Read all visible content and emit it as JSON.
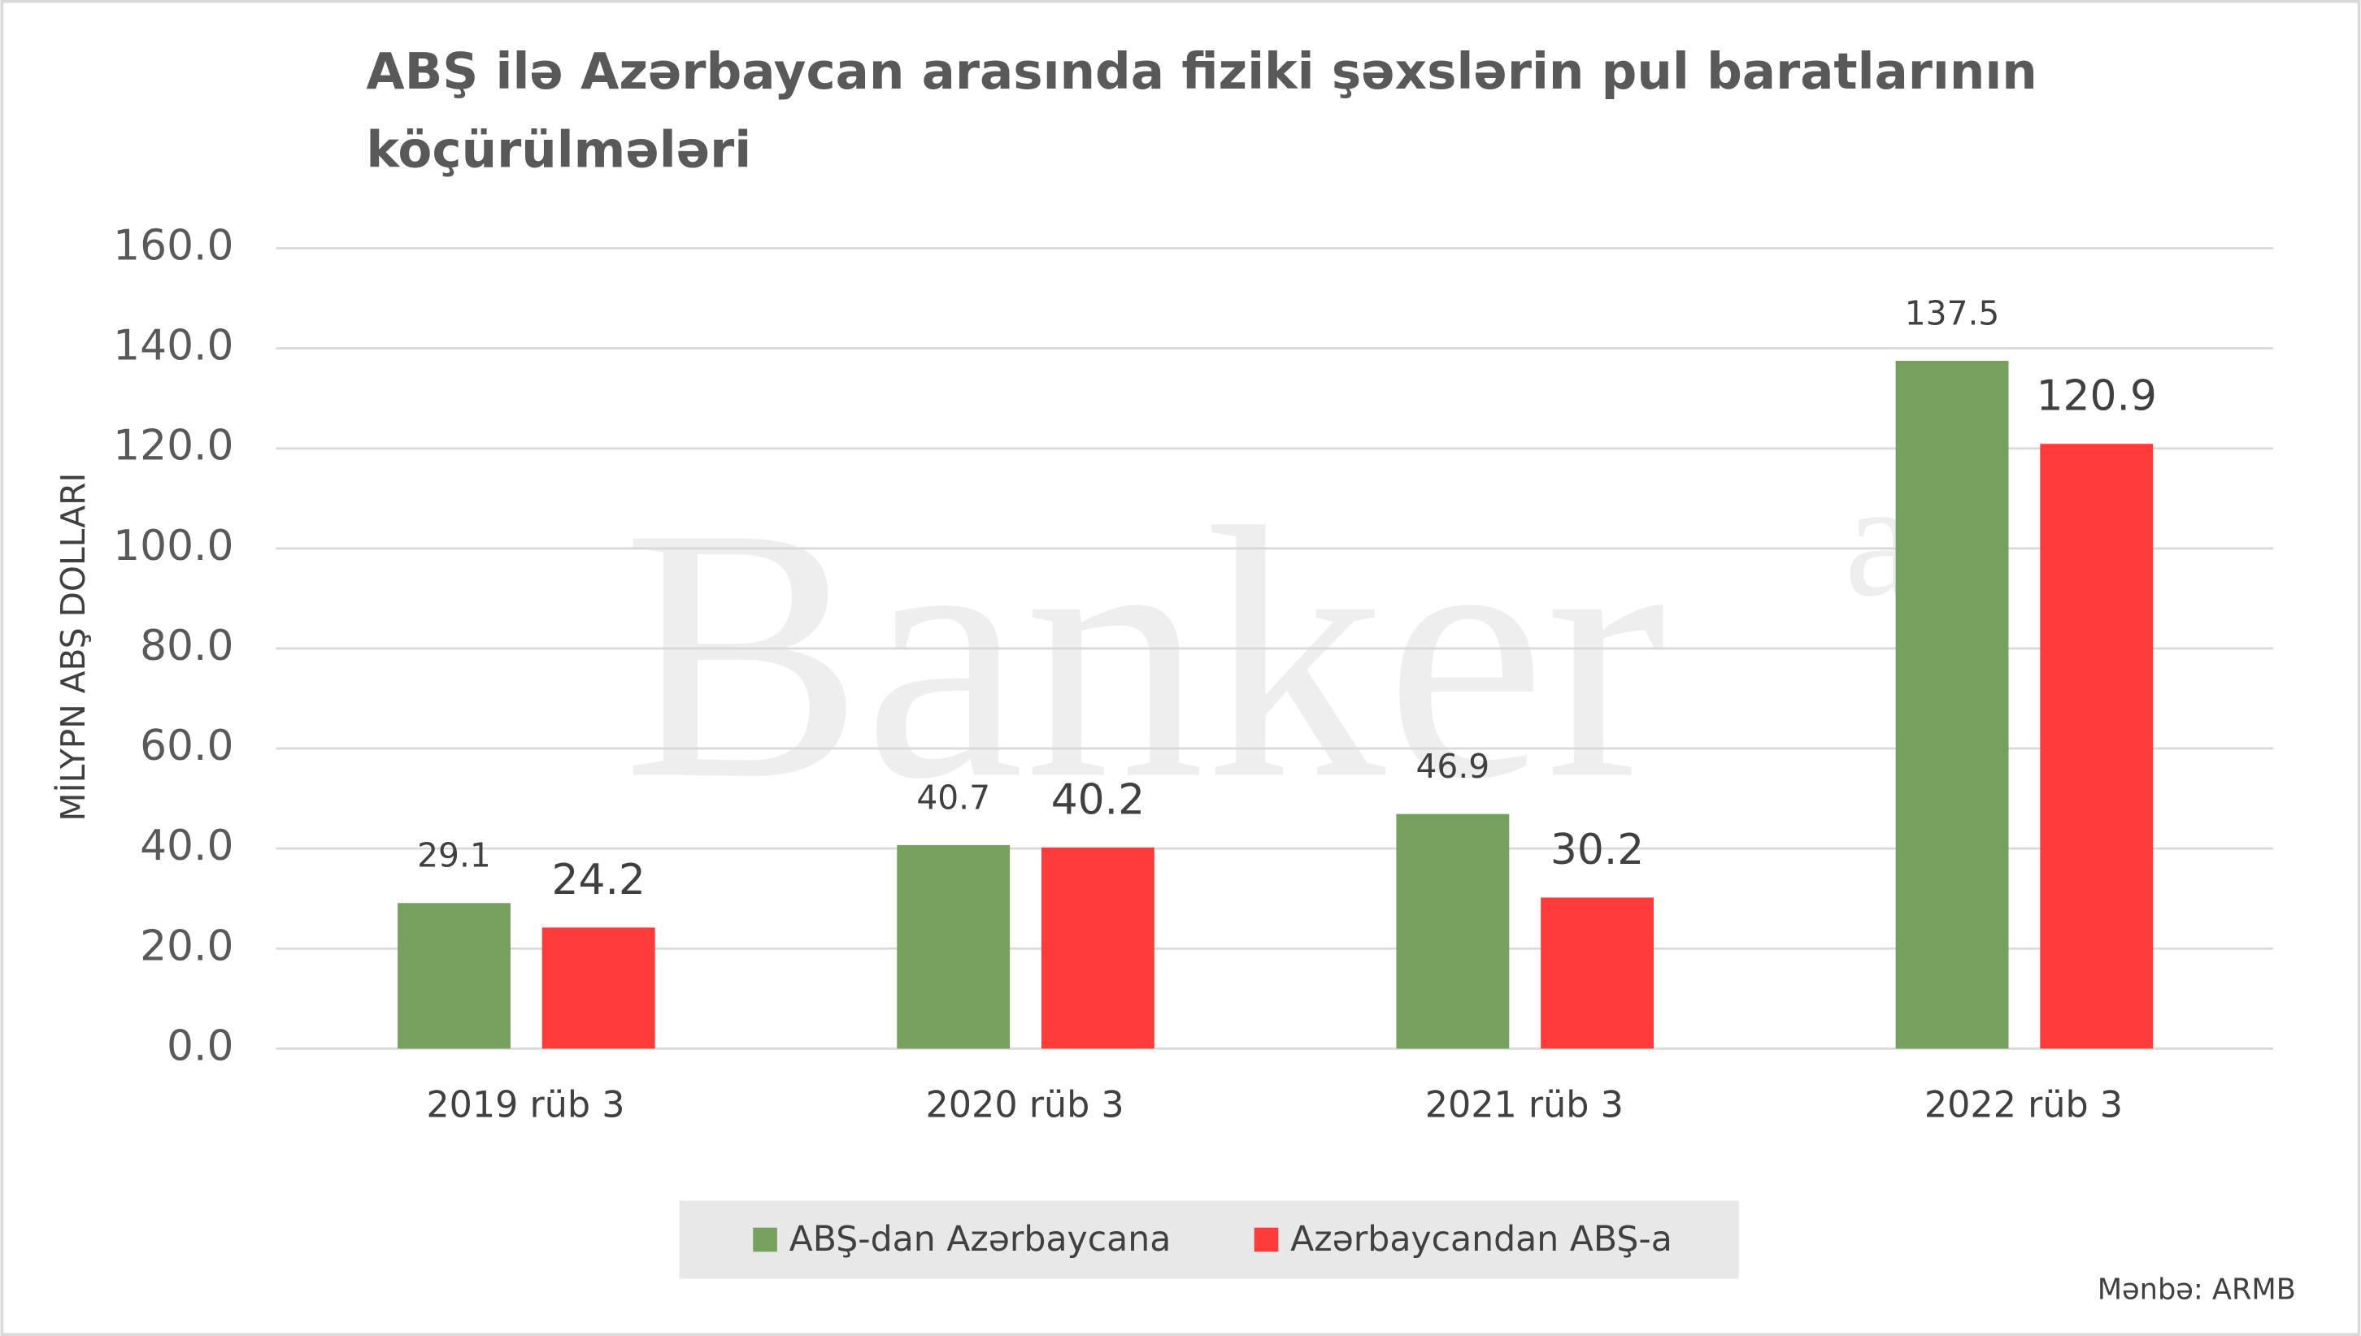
{
  "chart_data": {
    "type": "bar",
    "title": "ABŞ ilə Azərbaycan arasında fiziki şəxslərin pul baratlarının köçürülmələri",
    "y_label": "MİLYPN ABŞ DOLLARI",
    "categories": [
      "2019 rüb 3",
      "2020 rüb 3",
      "2021 rüb 3",
      "2022 rüb 3"
    ],
    "series": [
      {
        "name": "ABŞ-dan Azərbaycana",
        "color": "#77a05f",
        "values": [
          29.1,
          40.7,
          46.9,
          137.5
        ]
      },
      {
        "name": "Azərbaycandan ABŞ-a",
        "color": "#ff3b3b",
        "values": [
          24.2,
          40.2,
          30.2,
          120.9
        ]
      }
    ],
    "ylim": [
      0,
      160
    ],
    "yticks": [
      {
        "value": 0,
        "label": "0.0"
      },
      {
        "value": 20,
        "label": "20.0"
      },
      {
        "value": 40,
        "label": "40.0"
      },
      {
        "value": 60,
        "label": "60.0"
      },
      {
        "value": 80,
        "label": "80.0"
      },
      {
        "value": 100,
        "label": "100.0"
      },
      {
        "value": 120,
        "label": "120.0"
      },
      {
        "value": 140,
        "label": "140.0"
      },
      {
        "value": 160,
        "label": "160.0"
      }
    ],
    "grid": true,
    "legend": "bottom",
    "source": "Mənbə: ARMB",
    "watermark": "Banker",
    "watermark_suffix": "az"
  }
}
